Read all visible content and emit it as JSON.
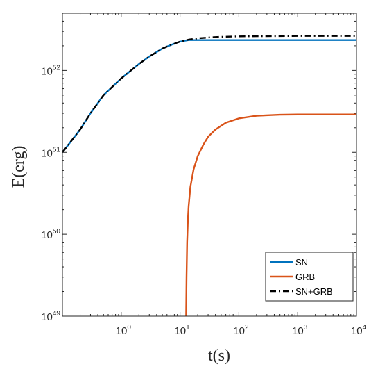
{
  "chart_data": {
    "type": "line",
    "xlabel": "t(s)",
    "ylabel": "E(erg)",
    "xscale": "log",
    "yscale": "log",
    "xlim": [
      0.1,
      10000
    ],
    "ylim": [
      1e+49,
      5e+52
    ],
    "grid": false,
    "legend_position": "bottom-right",
    "x_ticks": [
      {
        "base": "10",
        "exp": "0",
        "value": 1
      },
      {
        "base": "10",
        "exp": "1",
        "value": 10
      },
      {
        "base": "10",
        "exp": "2",
        "value": 100
      },
      {
        "base": "10",
        "exp": "3",
        "value": 1000
      },
      {
        "base": "10",
        "exp": "4",
        "value": 10000
      }
    ],
    "y_ticks": [
      {
        "base": "10",
        "exp": "49",
        "value": 1e+49
      },
      {
        "base": "10",
        "exp": "50",
        "value": 1e+50
      },
      {
        "base": "10",
        "exp": "51",
        "value": 1e+51
      },
      {
        "base": "10",
        "exp": "52",
        "value": 1e+52
      }
    ],
    "series": [
      {
        "name": "SN",
        "color": "#0072BD",
        "style": "solid",
        "points": [
          [
            0.1,
            1e+51
          ],
          [
            0.2,
            1.9e+51
          ],
          [
            0.3,
            3e+51
          ],
          [
            0.5,
            5e+51
          ],
          [
            1,
            8e+51
          ],
          [
            2,
            1.2e+52
          ],
          [
            3,
            1.48e+52
          ],
          [
            5,
            1.85e+52
          ],
          [
            7,
            2.05e+52
          ],
          [
            10,
            2.25e+52
          ],
          [
            14,
            2.35e+52
          ],
          [
            20,
            2.35e+52
          ],
          [
            100,
            2.35e+52
          ],
          [
            1000,
            2.35e+52
          ],
          [
            10000,
            2.35e+52
          ]
        ]
      },
      {
        "name": "GRB",
        "color": "#D95319",
        "style": "solid",
        "points": [
          [
            12.7,
            1e+49
          ],
          [
            12.9,
            3e+49
          ],
          [
            13.2,
            8e+49
          ],
          [
            13.6,
            1.5e+50
          ],
          [
            14,
            2.2e+50
          ],
          [
            15,
            3.8e+50
          ],
          [
            17,
            6.2e+50
          ],
          [
            20,
            9e+50
          ],
          [
            25,
            1.25e+51
          ],
          [
            30,
            1.55e+51
          ],
          [
            40,
            1.9e+51
          ],
          [
            60,
            2.3e+51
          ],
          [
            100,
            2.6e+51
          ],
          [
            200,
            2.8e+51
          ],
          [
            500,
            2.88e+51
          ],
          [
            1000,
            2.9e+51
          ],
          [
            10000,
            2.9e+51
          ]
        ]
      },
      {
        "name": "SN+GRB",
        "color": "#000000",
        "style": "dashdot",
        "points": [
          [
            0.1,
            1e+51
          ],
          [
            0.2,
            1.9e+51
          ],
          [
            0.3,
            3e+51
          ],
          [
            0.5,
            5e+51
          ],
          [
            1,
            8e+51
          ],
          [
            2,
            1.2e+52
          ],
          [
            3,
            1.48e+52
          ],
          [
            5,
            1.85e+52
          ],
          [
            7,
            2.05e+52
          ],
          [
            10,
            2.25e+52
          ],
          [
            14,
            2.38e+52
          ],
          [
            20,
            2.47e+52
          ],
          [
            40,
            2.56e+52
          ],
          [
            100,
            2.61e+52
          ],
          [
            1000,
            2.64e+52
          ],
          [
            10000,
            2.64e+52
          ]
        ]
      }
    ]
  }
}
